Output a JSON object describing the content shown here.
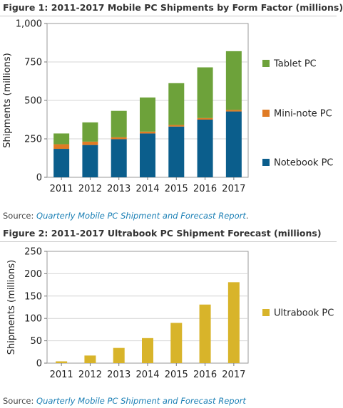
{
  "figure1": {
    "title": "Figure 1: 2011-2017 Mobile PC Shipments by Form Factor (millions)",
    "source_prefix": "Source: ",
    "source_link": "Quarterly Mobile PC Shipment and Forecast Report",
    "source_suffix": "."
  },
  "figure2": {
    "title": "Figure 2: 2011-2017 Ultrabook PC Shipment Forecast (millions)",
    "source_prefix": "Source: ",
    "source_link": "Quarterly Mobile PC Shipment and Forecast Report",
    "source_suffix": ""
  },
  "chart_data": [
    {
      "type": "bar",
      "stacked": true,
      "title": "Figure 1: 2011-2017 Mobile PC Shipments by Form Factor (millions)",
      "xlabel": "",
      "ylabel": "Shipments (millions)",
      "ylim": [
        0,
        1000
      ],
      "yticks": [
        0,
        250,
        500,
        750,
        1000
      ],
      "ytick_labels": [
        "0",
        "250",
        "500",
        "750",
        "1,000"
      ],
      "grid": true,
      "legend": "right",
      "categories": [
        "2011",
        "2012",
        "2013",
        "2014",
        "2015",
        "2016",
        "2017"
      ],
      "series": [
        {
          "name": "Notebook PC",
          "color": "#0b5e8c",
          "values": [
            185,
            210,
            248,
            285,
            330,
            375,
            428
          ]
        },
        {
          "name": "Mini-note PC",
          "color": "#e07b24",
          "values": [
            30,
            22,
            12,
            12,
            10,
            10,
            10
          ]
        },
        {
          "name": "Tablet PC",
          "color": "#6da23a",
          "values": [
            70,
            125,
            172,
            222,
            272,
            330,
            382
          ]
        }
      ],
      "legend_order": [
        "Tablet PC",
        "Mini-note PC",
        "Notebook PC"
      ]
    },
    {
      "type": "bar",
      "title": "Figure 2: 2011-2017 Ultrabook PC Shipment Forecast (millions)",
      "xlabel": "",
      "ylabel": "Shipments (millions)",
      "ylim": [
        0,
        250
      ],
      "yticks": [
        0,
        50,
        100,
        150,
        200,
        250
      ],
      "ytick_labels": [
        "0",
        "50",
        "100",
        "150",
        "200",
        "250"
      ],
      "grid": true,
      "legend": "right",
      "categories": [
        "2011",
        "2012",
        "2013",
        "2014",
        "2015",
        "2016",
        "2017"
      ],
      "series": [
        {
          "name": "Ultrabook PC",
          "color": "#d8b42a",
          "values": [
            4,
            17,
            34,
            56,
            90,
            131,
            181
          ]
        }
      ]
    }
  ]
}
